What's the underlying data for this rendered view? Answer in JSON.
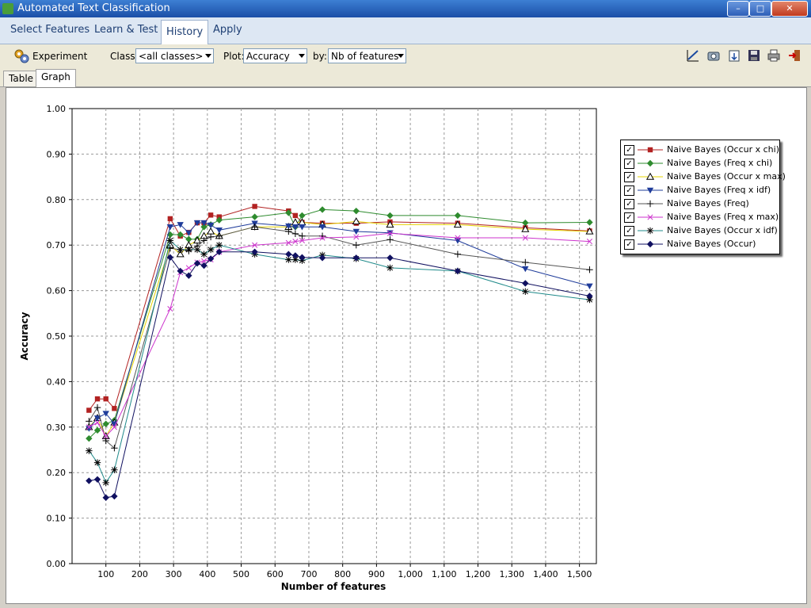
{
  "window": {
    "title": "Automated Text Classification",
    "minimize": "–",
    "maximize": "□",
    "close": "✕"
  },
  "main_tabs": [
    "Select Features",
    "Learn & Test",
    "History",
    "Apply"
  ],
  "active_main_tab": "History",
  "toolbar": {
    "experiment_label": "Experiment",
    "class_label": "Class:",
    "class_value": "<all classes>",
    "plot_label": "Plot:",
    "plot_value": "Accuracy",
    "by_label": "by:",
    "by_value": "Nb of features",
    "icons": [
      "chart-settings-icon",
      "snapshot-icon",
      "export-icon",
      "save-icon",
      "print-icon",
      "exit-icon"
    ]
  },
  "sub_tabs": [
    "Table",
    "Graph"
  ],
  "active_sub_tab": "Graph",
  "chart_data": {
    "type": "line",
    "xlabel": "Number of features",
    "ylabel": "Accuracy",
    "xlim": [
      0,
      1550
    ],
    "ylim": [
      0,
      1
    ],
    "x_ticks": [
      100,
      200,
      300,
      400,
      500,
      600,
      700,
      800,
      900,
      1000,
      1100,
      1200,
      1300,
      1400,
      1500
    ],
    "x_tick_labels": [
      "100",
      "200",
      "300",
      "400",
      "500",
      "600",
      "700",
      "800",
      "900",
      "1,000",
      "1,100",
      "1,200",
      "1,300",
      "1,400",
      "1,500"
    ],
    "y_ticks": [
      0,
      0.1,
      0.2,
      0.3,
      0.4,
      0.5,
      0.6,
      0.7,
      0.8,
      0.9,
      1.0
    ],
    "y_tick_labels": [
      "0.00",
      "0.10",
      "0.20",
      "0.30",
      "0.40",
      "0.50",
      "0.60",
      "0.70",
      "0.80",
      "0.90",
      "1.00"
    ],
    "grid": true,
    "legend_position": "right",
    "series": [
      {
        "name": "Naive Bayes (Occur x chi)",
        "color": "#b22222",
        "marker": "square",
        "x": [
          50,
          75,
          100,
          125,
          290,
          320,
          345,
          370,
          390,
          410,
          435,
          540,
          640,
          660,
          680,
          740,
          840,
          940,
          1140,
          1340,
          1530
        ],
        "y": [
          0.337,
          0.362,
          0.362,
          0.341,
          0.758,
          0.72,
          0.728,
          0.749,
          0.749,
          0.766,
          0.762,
          0.785,
          0.775,
          0.765,
          0.75,
          0.748,
          0.748,
          0.751,
          0.748,
          0.738,
          0.731
        ]
      },
      {
        "name": "Naive Bayes (Freq x chi)",
        "color": "#2e8b2e",
        "marker": "diamond",
        "x": [
          50,
          75,
          100,
          125,
          290,
          320,
          345,
          370,
          390,
          410,
          435,
          540,
          640,
          660,
          680,
          740,
          840,
          940,
          1140,
          1340,
          1530
        ],
        "y": [
          0.275,
          0.293,
          0.307,
          0.315,
          0.723,
          0.723,
          0.713,
          0.713,
          0.74,
          0.745,
          0.755,
          0.762,
          0.771,
          0.74,
          0.765,
          0.778,
          0.775,
          0.765,
          0.765,
          0.749,
          0.75
        ]
      },
      {
        "name": "Naive Bayes (Occur x max)",
        "color": "#e6d400",
        "marker": "triangle",
        "x": [
          50,
          75,
          100,
          125,
          290,
          320,
          345,
          370,
          390,
          410,
          435,
          540,
          640,
          660,
          680,
          740,
          840,
          940,
          1140,
          1340,
          1530
        ],
        "y": [
          0.3,
          0.32,
          0.28,
          0.31,
          0.7,
          0.68,
          0.7,
          0.71,
          0.72,
          0.73,
          0.72,
          0.74,
          0.74,
          0.75,
          0.75,
          0.745,
          0.752,
          0.745,
          0.745,
          0.735,
          0.73
        ]
      },
      {
        "name": "Naive Bayes (Freq x idf)",
        "color": "#1f3c9a",
        "marker": "inv_triangle",
        "x": [
          50,
          75,
          100,
          125,
          290,
          320,
          345,
          370,
          390,
          410,
          435,
          540,
          640,
          660,
          680,
          740,
          840,
          940,
          1140,
          1340,
          1530
        ],
        "y": [
          0.297,
          0.32,
          0.33,
          0.307,
          0.74,
          0.745,
          0.727,
          0.749,
          0.749,
          0.744,
          0.733,
          0.748,
          0.742,
          0.74,
          0.74,
          0.74,
          0.73,
          0.727,
          0.71,
          0.648,
          0.61
        ]
      },
      {
        "name": "Naive Bayes (Freq)",
        "color": "#555555",
        "marker": "plus",
        "x": [
          50,
          75,
          100,
          125,
          290,
          320,
          345,
          370,
          390,
          410,
          435,
          540,
          640,
          660,
          680,
          740,
          840,
          940,
          1140,
          1340,
          1530
        ],
        "y": [
          0.313,
          0.343,
          0.27,
          0.254,
          0.693,
          0.69,
          0.687,
          0.698,
          0.71,
          0.718,
          0.72,
          0.74,
          0.73,
          0.725,
          0.72,
          0.72,
          0.7,
          0.712,
          0.68,
          0.662,
          0.646
        ]
      },
      {
        "name": "Naive Bayes (Freq x max)",
        "color": "#cc33cc",
        "marker": "x",
        "x": [
          50,
          75,
          100,
          125,
          290,
          320,
          345,
          370,
          390,
          410,
          435,
          540,
          640,
          660,
          680,
          740,
          840,
          940,
          1140,
          1340,
          1530
        ],
        "y": [
          0.3,
          0.31,
          0.28,
          0.3,
          0.56,
          0.64,
          0.65,
          0.662,
          0.665,
          0.668,
          0.685,
          0.7,
          0.705,
          0.708,
          0.71,
          0.716,
          0.718,
          0.726,
          0.716,
          0.716,
          0.708
        ]
      },
      {
        "name": "Naive Bayes (Occur x idf)",
        "color": "#1f8a8a",
        "marker": "star",
        "x": [
          50,
          75,
          100,
          125,
          290,
          320,
          345,
          370,
          390,
          410,
          435,
          540,
          640,
          660,
          680,
          740,
          840,
          940,
          1140,
          1340,
          1530
        ],
        "y": [
          0.248,
          0.222,
          0.178,
          0.206,
          0.71,
          0.69,
          0.69,
          0.69,
          0.68,
          0.69,
          0.7,
          0.68,
          0.668,
          0.668,
          0.666,
          0.678,
          0.67,
          0.65,
          0.643,
          0.598,
          0.58
        ]
      },
      {
        "name": "Naive Bayes (Occur)",
        "color": "#101060",
        "marker": "diamond",
        "x": [
          50,
          75,
          100,
          125,
          290,
          320,
          345,
          370,
          390,
          410,
          435,
          540,
          640,
          660,
          680,
          740,
          840,
          940,
          1140,
          1340,
          1530
        ],
        "y": [
          0.182,
          0.185,
          0.145,
          0.148,
          0.673,
          0.643,
          0.633,
          0.66,
          0.655,
          0.67,
          0.685,
          0.685,
          0.68,
          0.677,
          0.673,
          0.672,
          0.672,
          0.672,
          0.643,
          0.616,
          0.588
        ]
      }
    ]
  }
}
